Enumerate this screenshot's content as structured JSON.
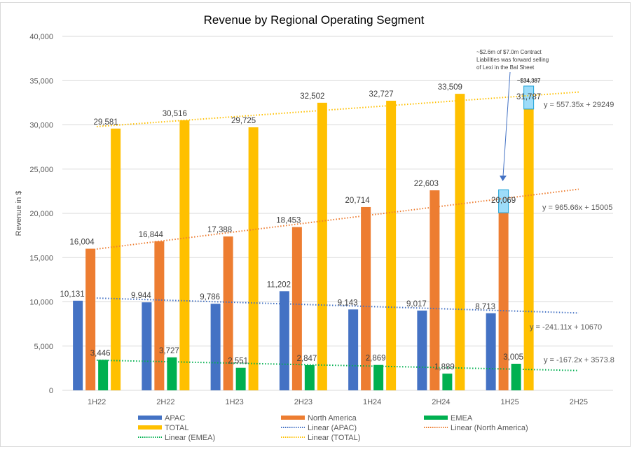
{
  "chart_data": {
    "type": "bar",
    "title": "Revenue by Regional Operating Segment",
    "xlabel": "",
    "ylabel": "Revenue in $",
    "ylim": [
      0,
      40000
    ],
    "yticks": [
      0,
      5000,
      10000,
      15000,
      20000,
      25000,
      30000,
      35000,
      40000
    ],
    "ytick_labels": [
      "0",
      "5,000",
      "10,000",
      "15,000",
      "20,000",
      "25,000",
      "30,000",
      "35,000",
      "40,000"
    ],
    "grid": true,
    "legend_position": "bottom",
    "categories": [
      "1H22",
      "2H22",
      "1H23",
      "2H23",
      "1H24",
      "2H24",
      "1H25",
      "2H25"
    ],
    "series": [
      {
        "name": "APAC",
        "color": "#4472C4",
        "values": [
          10131,
          9944,
          9786,
          11202,
          9143,
          9017,
          8713,
          null
        ],
        "labels": [
          "10,131",
          "9,944",
          "9,786",
          "11,202",
          "9,143",
          "9,017",
          "8,713",
          null
        ]
      },
      {
        "name": "North America",
        "color": "#ED7D31",
        "values": [
          16004,
          16844,
          17388,
          18453,
          20714,
          22603,
          20069,
          null
        ],
        "labels": [
          "16,004",
          "16,844",
          "17,388",
          "18,453",
          "20,714",
          "22,603",
          "20,069",
          null
        ]
      },
      {
        "name": "EMEA",
        "color": "#00B050",
        "values": [
          3446,
          3727,
          2551,
          2847,
          2869,
          1889,
          3005,
          null
        ],
        "labels": [
          "3,446",
          "3,727",
          "2,551",
          "2,847",
          "2,869",
          "1,889",
          "3,005",
          null
        ]
      },
      {
        "name": "TOTAL",
        "color": "#FFC000",
        "values": [
          29581,
          30516,
          29725,
          32502,
          32727,
          33509,
          31787,
          null
        ],
        "labels": [
          "29,581",
          "30,516",
          "29,725",
          "32,502",
          "32,727",
          "33,509",
          "31,787",
          null
        ]
      }
    ],
    "trendlines": [
      {
        "name": "Linear (APAC)",
        "series": "APAC",
        "slope": -241.11,
        "intercept": 10670,
        "equation": "y = -241.11x + 10670",
        "color": "#4472C4"
      },
      {
        "name": "Linear (North America)",
        "series": "North America",
        "slope": 965.66,
        "intercept": 15005,
        "equation": "y = 965.66x + 15005",
        "color": "#ED7D31"
      },
      {
        "name": "Linear (EMEA)",
        "series": "EMEA",
        "slope": -167.2,
        "intercept": 3573.8,
        "equation": "y = -167.2x + 3573.8",
        "color": "#00B050"
      },
      {
        "name": "Linear (TOTAL)",
        "series": "TOTAL",
        "slope": 557.35,
        "intercept": 29249,
        "equation": "y = 557.35x + 29249",
        "color": "#FFC000"
      }
    ],
    "highlight_boxes": [
      {
        "category": "1H25",
        "series": "North America",
        "from": 20069,
        "to": 22669,
        "color": "#9DDCF9"
      },
      {
        "category": "1H25",
        "series": "TOTAL",
        "from": 31787,
        "to": 34387,
        "color": "#9DDCF9",
        "label": "~$34,387"
      }
    ],
    "annotation": {
      "lines": [
        "~$2.6m of $7.0m Contract",
        "Liabilities was forward selling",
        "of Lexi in the Bal Sheet"
      ],
      "points_to": {
        "category": "1H25",
        "series": "North America"
      }
    },
    "legend": [
      {
        "label": "APAC",
        "kind": "bar",
        "color": "#4472C4"
      },
      {
        "label": "North America",
        "kind": "bar",
        "color": "#ED7D31"
      },
      {
        "label": "EMEA",
        "kind": "bar",
        "color": "#00B050"
      },
      {
        "label": "TOTAL",
        "kind": "bar",
        "color": "#FFC000"
      },
      {
        "label": "Linear (APAC)",
        "kind": "dotted",
        "color": "#4472C4"
      },
      {
        "label": "Linear (North America)",
        "kind": "dotted",
        "color": "#ED7D31"
      },
      {
        "label": "Linear (EMEA)",
        "kind": "dotted",
        "color": "#00B050"
      },
      {
        "label": "Linear (TOTAL)",
        "kind": "dotted",
        "color": "#FFC000"
      }
    ]
  }
}
